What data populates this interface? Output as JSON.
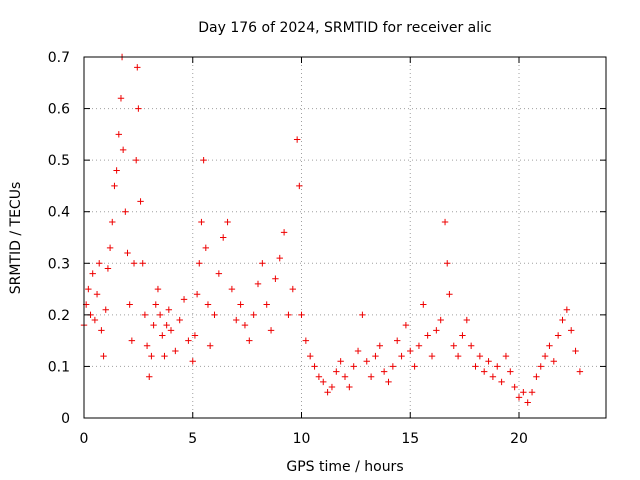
{
  "chart_data": {
    "type": "scatter",
    "title": "Day 176 of 2024, SRMTID for receiver alic",
    "xlabel": "GPS time / hours",
    "ylabel": "SRMTID / TECUs",
    "xlim": [
      0,
      24
    ],
    "ylim": [
      0,
      0.7
    ],
    "x_ticks": [
      0,
      5,
      10,
      15,
      20
    ],
    "x_tick_labels": [
      "0",
      "5",
      "10",
      "15",
      "20"
    ],
    "y_ticks": [
      0,
      0.1,
      0.2,
      0.3,
      0.4,
      0.5,
      0.6,
      0.7
    ],
    "y_tick_labels": [
      "0",
      "0.1",
      "0.2",
      "0.3",
      "0.4",
      "0.5",
      "0.6",
      "0.7"
    ],
    "grid": true,
    "marker": "plus",
    "color": "#ee0000",
    "series": [
      {
        "name": "SRMTID",
        "points": [
          [
            0.0,
            0.18
          ],
          [
            0.1,
            0.22
          ],
          [
            0.2,
            0.25
          ],
          [
            0.3,
            0.2
          ],
          [
            0.4,
            0.28
          ],
          [
            0.5,
            0.19
          ],
          [
            0.6,
            0.24
          ],
          [
            0.7,
            0.3
          ],
          [
            0.8,
            0.17
          ],
          [
            0.9,
            0.12
          ],
          [
            1.0,
            0.21
          ],
          [
            1.1,
            0.29
          ],
          [
            1.2,
            0.33
          ],
          [
            1.3,
            0.38
          ],
          [
            1.4,
            0.45
          ],
          [
            1.5,
            0.48
          ],
          [
            1.6,
            0.55
          ],
          [
            1.7,
            0.62
          ],
          [
            1.75,
            0.7
          ],
          [
            1.8,
            0.52
          ],
          [
            1.9,
            0.4
          ],
          [
            2.0,
            0.32
          ],
          [
            2.1,
            0.22
          ],
          [
            2.2,
            0.15
          ],
          [
            2.3,
            0.3
          ],
          [
            2.4,
            0.5
          ],
          [
            2.45,
            0.68
          ],
          [
            2.5,
            0.6
          ],
          [
            2.6,
            0.42
          ],
          [
            2.7,
            0.3
          ],
          [
            2.8,
            0.2
          ],
          [
            2.9,
            0.14
          ],
          [
            3.0,
            0.08
          ],
          [
            3.1,
            0.12
          ],
          [
            3.2,
            0.18
          ],
          [
            3.3,
            0.22
          ],
          [
            3.4,
            0.25
          ],
          [
            3.5,
            0.2
          ],
          [
            3.6,
            0.16
          ],
          [
            3.7,
            0.12
          ],
          [
            3.8,
            0.18
          ],
          [
            3.9,
            0.21
          ],
          [
            4.0,
            0.17
          ],
          [
            4.2,
            0.13
          ],
          [
            4.4,
            0.19
          ],
          [
            4.6,
            0.23
          ],
          [
            4.8,
            0.15
          ],
          [
            5.0,
            0.11
          ],
          [
            5.1,
            0.16
          ],
          [
            5.2,
            0.24
          ],
          [
            5.3,
            0.3
          ],
          [
            5.4,
            0.38
          ],
          [
            5.5,
            0.5
          ],
          [
            5.6,
            0.33
          ],
          [
            5.7,
            0.22
          ],
          [
            5.8,
            0.14
          ],
          [
            6.0,
            0.2
          ],
          [
            6.2,
            0.28
          ],
          [
            6.4,
            0.35
          ],
          [
            6.6,
            0.38
          ],
          [
            6.8,
            0.25
          ],
          [
            7.0,
            0.19
          ],
          [
            7.2,
            0.22
          ],
          [
            7.4,
            0.18
          ],
          [
            7.6,
            0.15
          ],
          [
            7.8,
            0.2
          ],
          [
            8.0,
            0.26
          ],
          [
            8.2,
            0.3
          ],
          [
            8.4,
            0.22
          ],
          [
            8.6,
            0.17
          ],
          [
            8.8,
            0.27
          ],
          [
            9.0,
            0.31
          ],
          [
            9.2,
            0.36
          ],
          [
            9.4,
            0.2
          ],
          [
            9.6,
            0.25
          ],
          [
            9.8,
            0.54
          ],
          [
            9.9,
            0.45
          ],
          [
            10.0,
            0.2
          ],
          [
            10.2,
            0.15
          ],
          [
            10.4,
            0.12
          ],
          [
            10.6,
            0.1
          ],
          [
            10.8,
            0.08
          ],
          [
            11.0,
            0.07
          ],
          [
            11.2,
            0.05
          ],
          [
            11.4,
            0.06
          ],
          [
            11.6,
            0.09
          ],
          [
            11.8,
            0.11
          ],
          [
            12.0,
            0.08
          ],
          [
            12.2,
            0.06
          ],
          [
            12.4,
            0.1
          ],
          [
            12.6,
            0.13
          ],
          [
            12.8,
            0.2
          ],
          [
            13.0,
            0.11
          ],
          [
            13.2,
            0.08
          ],
          [
            13.4,
            0.12
          ],
          [
            13.6,
            0.14
          ],
          [
            13.8,
            0.09
          ],
          [
            14.0,
            0.07
          ],
          [
            14.2,
            0.1
          ],
          [
            14.4,
            0.15
          ],
          [
            14.6,
            0.12
          ],
          [
            14.8,
            0.18
          ],
          [
            15.0,
            0.13
          ],
          [
            15.2,
            0.1
          ],
          [
            15.4,
            0.14
          ],
          [
            15.6,
            0.22
          ],
          [
            15.8,
            0.16
          ],
          [
            16.0,
            0.12
          ],
          [
            16.2,
            0.17
          ],
          [
            16.4,
            0.19
          ],
          [
            16.6,
            0.38
          ],
          [
            16.7,
            0.3
          ],
          [
            16.8,
            0.24
          ],
          [
            17.0,
            0.14
          ],
          [
            17.2,
            0.12
          ],
          [
            17.4,
            0.16
          ],
          [
            17.6,
            0.19
          ],
          [
            17.8,
            0.14
          ],
          [
            18.0,
            0.1
          ],
          [
            18.2,
            0.12
          ],
          [
            18.4,
            0.09
          ],
          [
            18.6,
            0.11
          ],
          [
            18.8,
            0.08
          ],
          [
            19.0,
            0.1
          ],
          [
            19.2,
            0.07
          ],
          [
            19.4,
            0.12
          ],
          [
            19.6,
            0.09
          ],
          [
            19.8,
            0.06
          ],
          [
            20.0,
            0.04
          ],
          [
            20.2,
            0.05
          ],
          [
            20.4,
            0.03
          ],
          [
            20.6,
            0.05
          ],
          [
            20.8,
            0.08
          ],
          [
            21.0,
            0.1
          ],
          [
            21.2,
            0.12
          ],
          [
            21.4,
            0.14
          ],
          [
            21.6,
            0.11
          ],
          [
            21.8,
            0.16
          ],
          [
            22.0,
            0.19
          ],
          [
            22.2,
            0.21
          ],
          [
            22.4,
            0.17
          ],
          [
            22.6,
            0.13
          ],
          [
            22.8,
            0.09
          ]
        ]
      }
    ]
  }
}
